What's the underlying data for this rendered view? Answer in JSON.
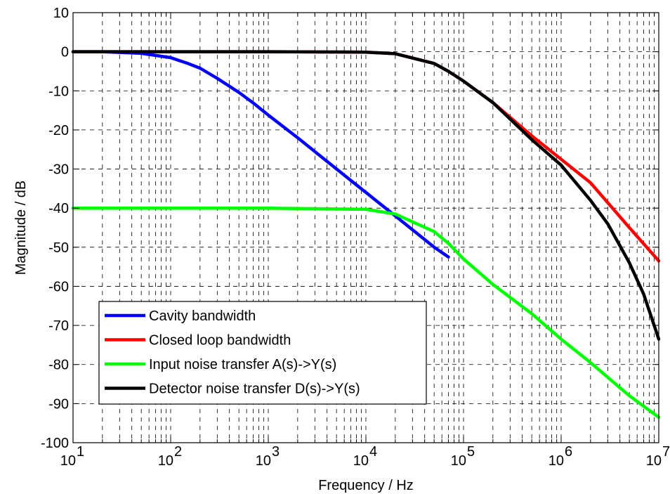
{
  "chart_data": {
    "type": "line",
    "title": "",
    "xlabel": "Frequency / Hz",
    "ylabel": "Magnitude / dB",
    "xscale": "log",
    "xlim": [
      10,
      10000000
    ],
    "ylim": [
      -100,
      10
    ],
    "grid": true,
    "grid_style": "dashed",
    "x_ticks": [
      {
        "value": 10,
        "base": "10",
        "exp": "1"
      },
      {
        "value": 100,
        "base": "10",
        "exp": "2"
      },
      {
        "value": 1000,
        "base": "10",
        "exp": "3"
      },
      {
        "value": 10000,
        "base": "10",
        "exp": "4"
      },
      {
        "value": 100000,
        "base": "10",
        "exp": "5"
      },
      {
        "value": 1000000,
        "base": "10",
        "exp": "6"
      },
      {
        "value": 10000000,
        "base": "10",
        "exp": "7"
      }
    ],
    "y_ticks": [
      {
        "value": 10,
        "label": "10"
      },
      {
        "value": 0,
        "label": "0"
      },
      {
        "value": -10,
        "label": "-10"
      },
      {
        "value": -20,
        "label": "-20"
      },
      {
        "value": -30,
        "label": "-30"
      },
      {
        "value": -40,
        "label": "-40"
      },
      {
        "value": -50,
        "label": "-50"
      },
      {
        "value": -60,
        "label": "-60"
      },
      {
        "value": -70,
        "label": "-70"
      },
      {
        "value": -80,
        "label": "-80"
      },
      {
        "value": -90,
        "label": "-90"
      },
      {
        "value": -100,
        "label": "-100"
      }
    ],
    "legend_position": "bottom-left",
    "series": [
      {
        "name": "Cavity bandwidth",
        "color": "#0000ff",
        "x": [
          10,
          20,
          50,
          100,
          150,
          200,
          300,
          500,
          700,
          1000,
          2000,
          5000,
          10000,
          20000,
          50000,
          70000
        ],
        "y": [
          0,
          0,
          -0.4,
          -1.5,
          -3,
          -4.2,
          -6.8,
          -10.4,
          -13.1,
          -16.2,
          -22,
          -30,
          -36,
          -42,
          -50,
          -52.5
        ]
      },
      {
        "name": "Closed loop bandwidth",
        "color": "#ff0000",
        "x": [
          10,
          1000,
          10000,
          20000,
          50000,
          70000,
          100000,
          200000,
          500000,
          1000000,
          2000000,
          5000000,
          10000000
        ],
        "y": [
          0,
          0,
          -0.1,
          -0.5,
          -3,
          -5,
          -7.5,
          -13,
          -21.5,
          -27.5,
          -33.5,
          -45,
          -53.5
        ]
      },
      {
        "name": "Input noise transfer A(s)->Y(s)",
        "color": "#00ff00",
        "x": [
          10,
          1000,
          10000,
          20000,
          50000,
          70000,
          100000,
          200000,
          500000,
          1000000,
          2000000,
          5000000,
          10000000
        ],
        "y": [
          -40,
          -40,
          -40.3,
          -41.5,
          -46,
          -49,
          -53,
          -59.5,
          -67,
          -73.5,
          -79.5,
          -88,
          -93.5
        ]
      },
      {
        "name": "Detector noise transfer D(s)->Y(s)",
        "color": "#000000",
        "x": [
          10,
          1000,
          10000,
          20000,
          50000,
          70000,
          100000,
          200000,
          500000,
          1000000,
          2000000,
          3000000,
          5000000,
          7000000,
          10000000
        ],
        "y": [
          0,
          0,
          -0.1,
          -0.5,
          -3,
          -5,
          -7.5,
          -13,
          -22.5,
          -29,
          -38,
          -44,
          -54,
          -62,
          -73.5
        ]
      }
    ]
  }
}
